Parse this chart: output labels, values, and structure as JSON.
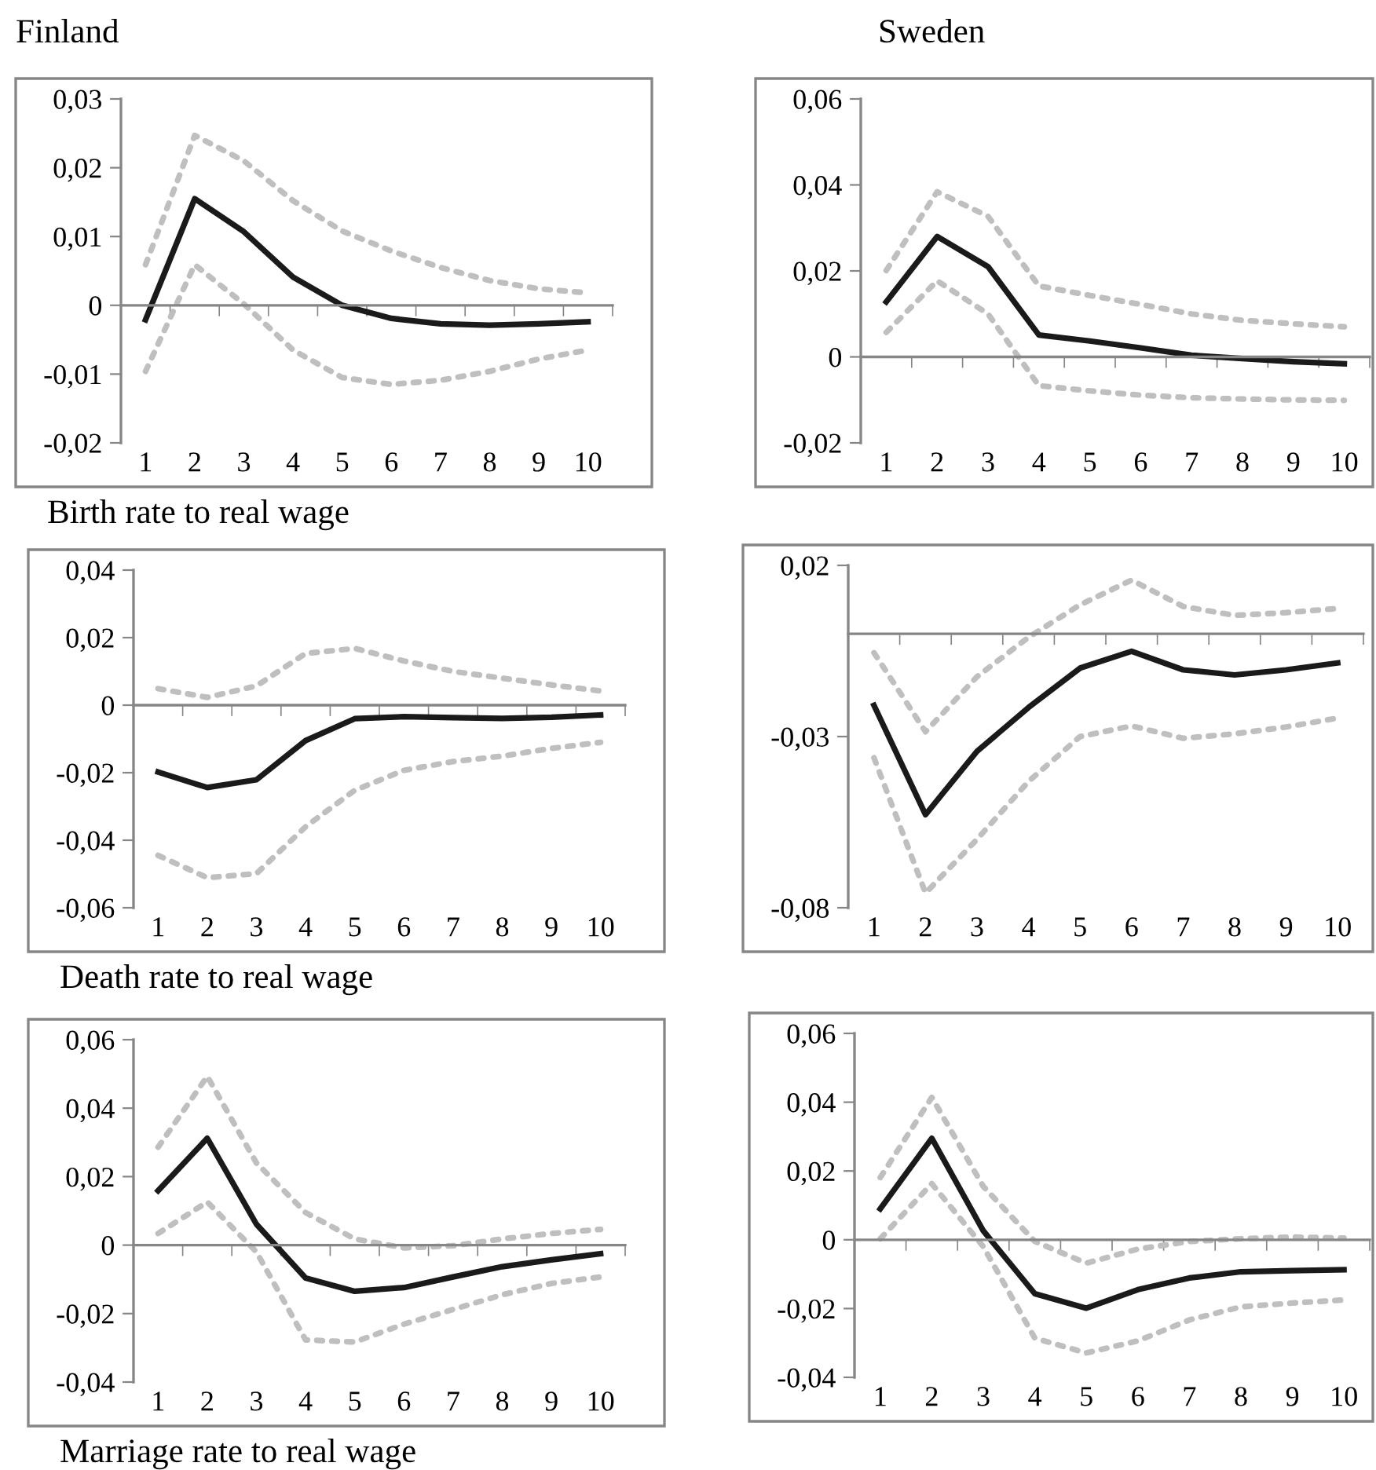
{
  "chart_data": [
    {
      "type": "line",
      "title": "Finland",
      "categories": [
        "1",
        "2",
        "3",
        "4",
        "5",
        "6",
        "7",
        "8",
        "9",
        "10"
      ],
      "ylim": [
        -0.02,
        0.03
      ],
      "yticks": [
        {
          "value": -0.02,
          "label": "-0,02"
        },
        {
          "value": -0.01,
          "label": "-0,01"
        },
        0,
        {
          "value": 0.01,
          "label": "0,01"
        },
        {
          "value": 0.02,
          "label": "0,02"
        },
        {
          "value": 0.03,
          "label": "0,03"
        }
      ],
      "annotations": [
        "Birth rate to real wage"
      ],
      "series": [
        {
          "color": "#bfbfbf",
          "line_style": "dotted",
          "values": [
            0.0059,
            0.0247,
            0.021,
            0.0152,
            0.0108,
            0.0079,
            0.0055,
            0.0036,
            0.0024,
            0.0018
          ]
        },
        {
          "color": "#bfbfbf",
          "line_style": "dotted",
          "values": [
            -0.0096,
            0.0059,
            0.0002,
            -0.0065,
            -0.0105,
            -0.0115,
            -0.0109,
            -0.0096,
            -0.0078,
            -0.0065
          ]
        },
        {
          "color": "#1a1a1a",
          "line_style": "solid",
          "values": [
            -0.0021,
            0.0155,
            0.0107,
            0.0041,
            0.0,
            -0.0019,
            -0.0027,
            -0.0029,
            -0.0027,
            -0.0024
          ]
        }
      ]
    },
    {
      "type": "line",
      "title": "Sweden",
      "categories": [
        "1",
        "2",
        "3",
        "4",
        "5",
        "6",
        "7",
        "8",
        "9",
        "10"
      ],
      "ylim": [
        -0.02,
        0.06
      ],
      "yticks": [
        {
          "value": -0.02,
          "label": "-0,02"
        },
        0,
        {
          "value": 0.02,
          "label": "0,02"
        },
        {
          "value": 0.04,
          "label": "0,04"
        },
        {
          "value": 0.06,
          "label": "0,06"
        }
      ],
      "series": [
        {
          "color": "#bfbfbf",
          "line_style": "dotted",
          "values": [
            0.0201,
            0.0384,
            0.0327,
            0.0165,
            0.0143,
            0.0122,
            0.01,
            0.0085,
            0.0077,
            0.007
          ]
        },
        {
          "color": "#bfbfbf",
          "line_style": "dotted",
          "values": [
            0.0057,
            0.0177,
            0.01,
            -0.0067,
            -0.0079,
            -0.0089,
            -0.0095,
            -0.0098,
            -0.01,
            -0.0101
          ]
        },
        {
          "color": "#1a1a1a",
          "line_style": "solid",
          "values": [
            0.0128,
            0.028,
            0.021,
            0.0051,
            0.0037,
            0.0021,
            0.0004,
            -0.0004,
            -0.0011,
            -0.0016
          ]
        }
      ]
    },
    {
      "type": "line",
      "categories": [
        "1",
        "2",
        "3",
        "4",
        "5",
        "6",
        "7",
        "8",
        "9",
        "10"
      ],
      "ylim": [
        -0.06,
        0.04
      ],
      "yticks": [
        {
          "value": -0.06,
          "label": "-0,06"
        },
        {
          "value": -0.04,
          "label": "-0,04"
        },
        {
          "value": -0.02,
          "label": "-0,02"
        },
        0,
        {
          "value": 0.02,
          "label": "0,02"
        },
        {
          "value": 0.04,
          "label": "0,04"
        }
      ],
      "annotations": [
        "Death rate to real wage"
      ],
      "series": [
        {
          "color": "#bfbfbf",
          "line_style": "dotted",
          "values": [
            0.0049,
            0.0023,
            0.0057,
            0.0153,
            0.0168,
            0.0131,
            0.01,
            0.008,
            0.006,
            0.0042
          ]
        },
        {
          "color": "#bfbfbf",
          "line_style": "dotted",
          "values": [
            -0.0445,
            -0.0511,
            -0.0499,
            -0.036,
            -0.0252,
            -0.0193,
            -0.0167,
            -0.0151,
            -0.0128,
            -0.011
          ]
        },
        {
          "color": "#1a1a1a",
          "line_style": "solid",
          "values": [
            -0.0198,
            -0.0244,
            -0.0221,
            -0.0105,
            -0.004,
            -0.0034,
            -0.0037,
            -0.0039,
            -0.0036,
            -0.0029
          ]
        }
      ]
    },
    {
      "type": "line",
      "categories": [
        "1",
        "2",
        "3",
        "4",
        "5",
        "6",
        "7",
        "8",
        "9",
        "10"
      ],
      "ylim": [
        -0.08,
        0.02
      ],
      "yticks": [
        {
          "value": -0.08,
          "label": "-0,08"
        },
        {
          "value": -0.03,
          "label": "-0,03"
        },
        {
          "value": 0.02,
          "label": "0,02"
        }
      ],
      "series": [
        {
          "color": "#bfbfbf",
          "line_style": "dotted",
          "values": [
            -0.0055,
            -0.0286,
            -0.0125,
            -0.001,
            0.0085,
            0.0157,
            0.008,
            0.0054,
            0.0062,
            0.0074
          ]
        },
        {
          "color": "#bfbfbf",
          "line_style": "dotted",
          "values": [
            -0.0362,
            -0.0757,
            -0.06,
            -0.0431,
            -0.03,
            -0.0269,
            -0.0305,
            -0.0292,
            -0.0272,
            -0.0246
          ]
        },
        {
          "color": "#1a1a1a",
          "line_style": "solid",
          "values": [
            -0.0209,
            -0.0528,
            -0.0343,
            -0.0215,
            -0.01,
            -0.0051,
            -0.0105,
            -0.012,
            -0.0105,
            -0.0085
          ]
        }
      ]
    },
    {
      "type": "line",
      "categories": [
        "1",
        "2",
        "3",
        "4",
        "5",
        "6",
        "7",
        "8",
        "9",
        "10"
      ],
      "ylim": [
        -0.04,
        0.06
      ],
      "yticks": [
        {
          "value": -0.04,
          "label": "-0,04"
        },
        {
          "value": -0.02,
          "label": "-0,02"
        },
        0,
        {
          "value": 0.02,
          "label": "0,02"
        },
        {
          "value": 0.04,
          "label": "0,04"
        },
        {
          "value": 0.06,
          "label": "0,06"
        }
      ],
      "annotations": [
        "Marriage rate to real wage"
      ],
      "series": [
        {
          "color": "#bfbfbf",
          "line_style": "dotted",
          "values": [
            0.0286,
            0.0493,
            0.024,
            0.0095,
            0.0018,
            -0.0008,
            -0.0002,
            0.0018,
            0.0034,
            0.0046
          ]
        },
        {
          "color": "#bfbfbf",
          "line_style": "dotted",
          "values": [
            0.0034,
            0.0126,
            -0.002,
            -0.0277,
            -0.0283,
            -0.0231,
            -0.0188,
            -0.0145,
            -0.0112,
            -0.0093
          ]
        },
        {
          "color": "#1a1a1a",
          "line_style": "solid",
          "values": [
            0.0159,
            0.0312,
            0.0061,
            -0.0096,
            -0.0135,
            -0.0124,
            -0.0093,
            -0.0063,
            -0.0043,
            -0.0025
          ]
        }
      ]
    },
    {
      "type": "line",
      "categories": [
        "1",
        "2",
        "3",
        "4",
        "5",
        "6",
        "7",
        "8",
        "9",
        "10"
      ],
      "ylim": [
        -0.04,
        0.06
      ],
      "yticks": [
        {
          "value": -0.04,
          "label": "-0,04"
        },
        {
          "value": -0.02,
          "label": "-0,02"
        },
        0,
        {
          "value": 0.02,
          "label": "0,02"
        },
        {
          "value": 0.04,
          "label": "0,04"
        },
        {
          "value": 0.06,
          "label": "0,06"
        }
      ],
      "series": [
        {
          "color": "#bfbfbf",
          "line_style": "dotted",
          "values": [
            0.0181,
            0.0414,
            0.0155,
            -0.0005,
            -0.0068,
            -0.0027,
            -0.0005,
            0.0003,
            0.0008,
            0.0005
          ]
        },
        {
          "color": "#bfbfbf",
          "line_style": "dotted",
          "values": [
            0.0003,
            0.0163,
            -0.002,
            -0.0286,
            -0.0329,
            -0.0294,
            -0.0233,
            -0.0195,
            -0.0184,
            -0.0175
          ]
        },
        {
          "color": "#1a1a1a",
          "line_style": "solid",
          "values": [
            0.009,
            0.0295,
            0.0026,
            -0.0157,
            -0.0199,
            -0.0145,
            -0.0111,
            -0.0093,
            -0.009,
            -0.0087
          ]
        }
      ]
    }
  ]
}
